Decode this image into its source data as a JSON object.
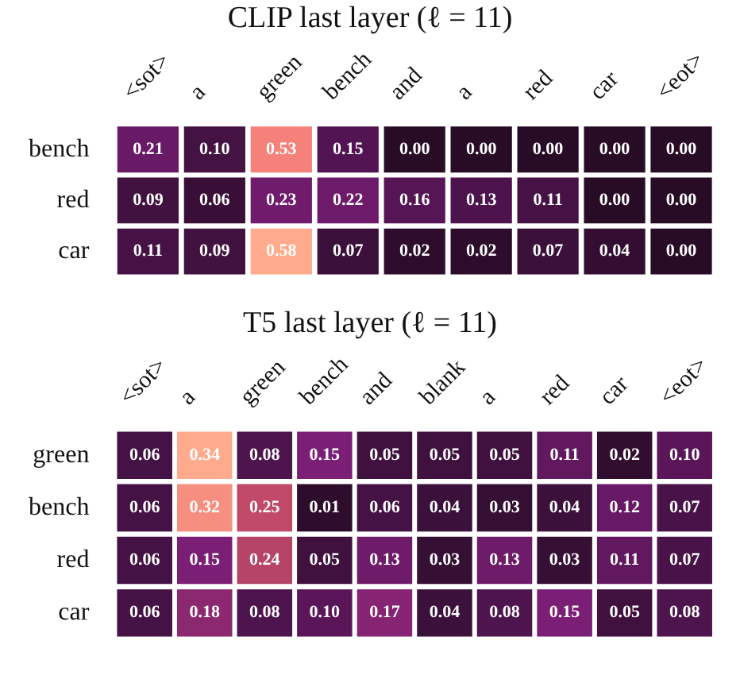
{
  "chart_data": [
    {
      "type": "heatmap",
      "title": "CLIP last layer (ℓ = 11)",
      "data_labels": true,
      "categories": [
        "<sot>",
        "a",
        "green",
        "bench",
        "and",
        "a",
        "red",
        "car",
        "<eot>"
      ],
      "y_categories": [
        "bench",
        "red",
        "car"
      ],
      "cells": [
        [
          0.21,
          0.1,
          0.53,
          0.15,
          0.0,
          0.0,
          0.0,
          0.0,
          0.0
        ],
        [
          0.09,
          0.06,
          0.23,
          0.22,
          0.16,
          0.13,
          0.11,
          0.0,
          0.0
        ],
        [
          0.11,
          0.09,
          0.58,
          0.07,
          0.02,
          0.02,
          0.07,
          0.04,
          0.0
        ]
      ],
      "cell_labels": [
        [
          "0.21",
          "0.10",
          "0.53",
          "0.15",
          "0.00",
          "0.00",
          "0.00",
          "0.00",
          "0.00"
        ],
        [
          "0.09",
          "0.06",
          "0.23",
          "0.22",
          "0.16",
          "0.13",
          "0.11",
          "0.00",
          "0.00"
        ],
        [
          "0.11",
          "0.09",
          "0.58",
          "0.07",
          "0.02",
          "0.02",
          "0.07",
          "0.04",
          "0.00"
        ]
      ]
    },
    {
      "type": "heatmap",
      "title": "T5 last layer (ℓ = 11)",
      "data_labels": true,
      "categories": [
        "<sot>",
        "a",
        "green",
        "bench",
        "and",
        "blank",
        "a",
        "red",
        "car",
        "<eot>"
      ],
      "y_categories": [
        "green",
        "bench",
        "red",
        "car"
      ],
      "cells": [
        [
          0.06,
          0.34,
          0.08,
          0.15,
          0.05,
          0.05,
          0.05,
          0.11,
          0.02,
          0.1
        ],
        [
          0.06,
          0.32,
          0.25,
          0.01,
          0.06,
          0.04,
          0.03,
          0.04,
          0.12,
          0.07
        ],
        [
          0.06,
          0.15,
          0.24,
          0.05,
          0.13,
          0.03,
          0.13,
          0.03,
          0.11,
          0.07
        ],
        [
          0.06,
          0.18,
          0.08,
          0.1,
          0.17,
          0.04,
          0.08,
          0.15,
          0.05,
          0.08
        ]
      ],
      "cell_labels": [
        [
          "0.06",
          "0.34",
          "0.08",
          "0.15",
          "0.05",
          "0.05",
          "0.05",
          "0.11",
          "0.02",
          "0.10"
        ],
        [
          "0.06",
          "0.32",
          "0.25",
          "0.01",
          "0.06",
          "0.04",
          "0.03",
          "0.04",
          "0.12",
          "0.07"
        ],
        [
          "0.06",
          "0.15",
          "0.24",
          "0.05",
          "0.13",
          "0.03",
          "0.13",
          "0.03",
          "0.11",
          "0.07"
        ],
        [
          "0.06",
          "0.18",
          "0.08",
          "0.10",
          "0.17",
          "0.04",
          "0.08",
          "0.15",
          "0.05",
          "0.08"
        ]
      ]
    }
  ]
}
